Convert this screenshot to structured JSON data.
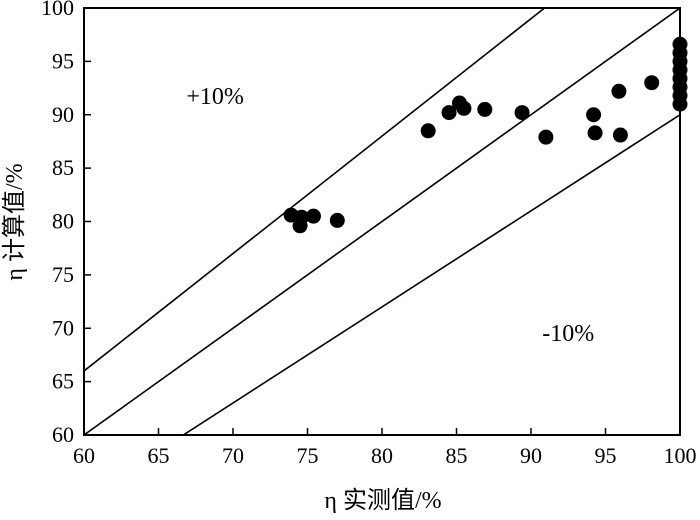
{
  "chart_data": {
    "type": "scatter",
    "title": "",
    "xlabel": "η 实测值/%",
    "ylabel": "η 计算值/%",
    "xlim": [
      60,
      100
    ],
    "ylim": [
      60,
      100
    ],
    "xticks": [
      "60",
      "65",
      "70",
      "75",
      "80",
      "85",
      "90",
      "95",
      "100"
    ],
    "yticks": [
      "60",
      "65",
      "70",
      "75",
      "80",
      "85",
      "90",
      "95",
      "100"
    ],
    "grid": false,
    "reference_lines": [
      {
        "label": "+10%",
        "slope": 1.1,
        "label_pos": [
          68.8,
          91.0
        ]
      },
      {
        "label": "",
        "slope": 1.0
      },
      {
        "label": "-10%",
        "slope": 0.9,
        "label_pos": [
          92.5,
          68.8
        ]
      }
    ],
    "series": [
      {
        "x": [
          73.9,
          74.6,
          74.5,
          75.4,
          77.0,
          83.1,
          84.5,
          85.2,
          85.5,
          86.9,
          89.4,
          91.0,
          94.2,
          94.3,
          95.9,
          96.0,
          98.1,
          100,
          100,
          100,
          100,
          100,
          100,
          100,
          100
        ],
        "y": [
          80.6,
          80.4,
          79.6,
          80.5,
          80.1,
          88.5,
          90.2,
          91.1,
          90.6,
          90.5,
          90.2,
          87.9,
          90.0,
          88.3,
          92.2,
          88.1,
          93.0,
          91.0,
          91.8,
          92.6,
          93.4,
          94.2,
          95.0,
          95.8,
          96.6
        ]
      }
    ]
  }
}
